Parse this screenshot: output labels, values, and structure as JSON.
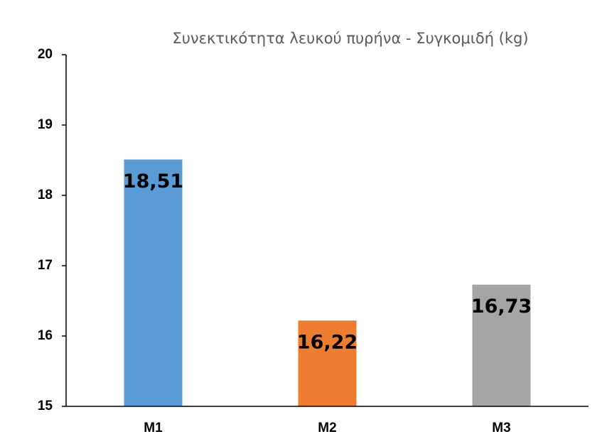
{
  "chart_data": {
    "type": "bar",
    "title": "Συνεκτικότητα λευκού πυρήνα - Συγκομιδή (kg)",
    "categories": [
      "M1",
      "M2",
      "M3"
    ],
    "values": [
      18.51,
      16.22,
      16.73
    ],
    "value_labels": [
      "18,51",
      "16,22",
      "16,73"
    ],
    "colors": [
      "#5b9bd5",
      "#ed7d31",
      "#a5a5a5"
    ],
    "ylim": [
      15,
      20
    ],
    "yticks": [
      15,
      16,
      17,
      18,
      19,
      20
    ],
    "grid": false
  }
}
